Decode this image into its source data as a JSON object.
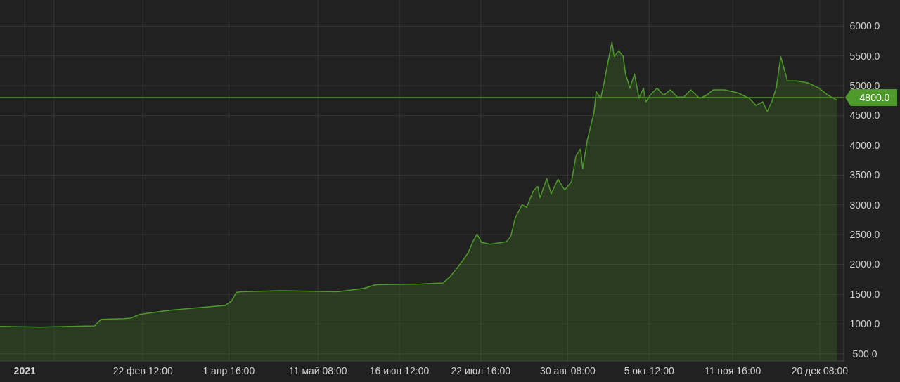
{
  "chart_data": {
    "type": "area",
    "x": [
      "2020-12-21",
      "2021-01-08",
      "2021-02-01",
      "2021-02-04",
      "2021-02-14",
      "2021-02-17",
      "2021-02-21",
      "2021-03-06",
      "2021-03-18",
      "2021-03-31",
      "2021-04-03",
      "2021-04-05",
      "2021-04-07",
      "2021-04-25",
      "2021-05-20",
      "2021-06-01",
      "2021-06-06",
      "2021-06-26",
      "2021-07-06",
      "2021-07-09",
      "2021-07-13",
      "2021-07-17",
      "2021-07-19",
      "2021-07-21",
      "2021-07-23",
      "2021-07-27",
      "2021-08-03",
      "2021-08-05",
      "2021-08-07",
      "2021-08-10",
      "2021-08-12",
      "2021-08-15",
      "2021-08-17",
      "2021-08-18",
      "2021-08-21",
      "2021-08-23",
      "2021-08-26",
      "2021-08-29",
      "2021-09-01",
      "2021-09-03",
      "2021-09-05",
      "2021-09-06",
      "2021-09-08",
      "2021-09-11",
      "2021-09-12",
      "2021-09-14",
      "2021-09-15",
      "2021-09-18",
      "2021-09-19",
      "2021-09-20",
      "2021-09-22",
      "2021-09-24",
      "2021-09-25",
      "2021-09-27",
      "2021-09-29",
      "2021-10-01",
      "2021-10-03",
      "2021-10-04",
      "2021-10-06",
      "2021-10-09",
      "2021-10-12",
      "2021-10-15",
      "2021-10-18",
      "2021-10-21",
      "2021-10-24",
      "2021-10-28",
      "2021-10-31",
      "2021-11-03",
      "2021-11-08",
      "2021-11-14",
      "2021-11-19",
      "2021-11-22",
      "2021-11-25",
      "2021-11-27",
      "2021-11-29",
      "2021-12-01",
      "2021-12-03",
      "2021-12-06",
      "2021-12-10",
      "2021-12-15",
      "2021-12-20",
      "2021-12-24",
      "2021-12-28"
    ],
    "series": [
      {
        "color": "#4e9a2a",
        "values": [
          960,
          950,
          970,
          1080,
          1090,
          1100,
          1160,
          1230,
          1270,
          1310,
          1390,
          1530,
          1540,
          1560,
          1540,
          1600,
          1660,
          1670,
          1690,
          1790,
          1980,
          2190,
          2370,
          2510,
          2370,
          2340,
          2380,
          2470,
          2780,
          3000,
          2960,
          3230,
          3310,
          3120,
          3440,
          3190,
          3430,
          3250,
          3390,
          3820,
          3940,
          3610,
          4080,
          4550,
          4900,
          4790,
          4960,
          5550,
          5730,
          5490,
          5590,
          5490,
          5200,
          4960,
          5200,
          4790,
          4960,
          4730,
          4840,
          4960,
          4840,
          4930,
          4810,
          4810,
          4930,
          4790,
          4840,
          4930,
          4930,
          4880,
          4790,
          4670,
          4730,
          4570,
          4730,
          4960,
          5490,
          5080,
          5080,
          5050,
          4960,
          4840,
          4760
        ]
      }
    ],
    "xlim": [
      "2020-12-21",
      "2021-12-31"
    ],
    "xticks": [
      {
        "value": "2021-01-01",
        "label": "2021"
      },
      {
        "value": "2021-01-14",
        "label": null
      },
      {
        "value": "2021-02-22T12:00",
        "label": "22 фев 12:00"
      },
      {
        "value": "2021-04-01T16:00",
        "label": "1 апр 16:00"
      },
      {
        "value": "2021-05-11T08:00",
        "label": "11 май 08:00"
      },
      {
        "value": "2021-06-16T12:00",
        "label": "16 июн 12:00"
      },
      {
        "value": "2021-07-22T16:00",
        "label": "22 июл 16:00"
      },
      {
        "value": "2021-08-30T08:00",
        "label": "30 авг 08:00"
      },
      {
        "value": "2021-10-05T12:00",
        "label": "5 окт 12:00"
      },
      {
        "value": "2021-11-11T16:00",
        "label": "11 ноя 16:00"
      },
      {
        "value": "2021-12-20T08:00",
        "label": "20 дек 08:00"
      }
    ],
    "ylim": [
      380,
      6440
    ],
    "yticks": [
      {
        "value": 500,
        "label": "500.0"
      },
      {
        "value": 1000,
        "label": "1000.0"
      },
      {
        "value": 1500,
        "label": "1500.0"
      },
      {
        "value": 2000,
        "label": "2000.0"
      },
      {
        "value": 2500,
        "label": "2500.0"
      },
      {
        "value": 3000,
        "label": "3000.0"
      },
      {
        "value": 3500,
        "label": "3500.0"
      },
      {
        "value": 4000,
        "label": "4000.0"
      },
      {
        "value": 4500,
        "label": "4500.0"
      },
      {
        "value": 5000,
        "label": "5000.0"
      },
      {
        "value": 5500,
        "label": "5500.0"
      },
      {
        "value": 6000,
        "label": "6000.0"
      }
    ],
    "ref_lines": [
      {
        "axis": "y",
        "value": 4800,
        "label": "4800.0",
        "color": "#4e9a2a"
      }
    ],
    "grid": true
  }
}
